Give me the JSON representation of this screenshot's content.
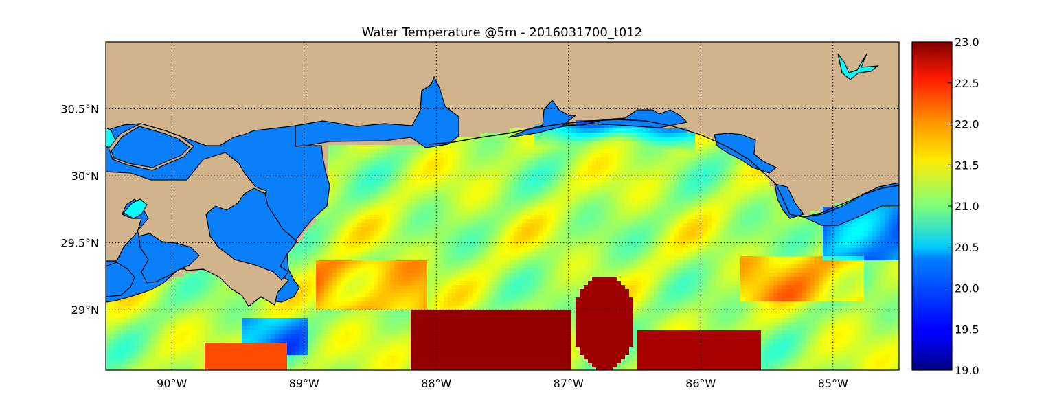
{
  "map": {
    "title": "Water Temperature @5m - 2016031700_t012",
    "lon_extent": [
      -90.5,
      -84.5
    ],
    "lat_extent": [
      28.55,
      31.0
    ],
    "lon_ticks": [
      {
        "value": -90,
        "label": "90°W"
      },
      {
        "value": -89,
        "label": "89°W"
      },
      {
        "value": -88,
        "label": "88°W"
      },
      {
        "value": -87,
        "label": "87°W"
      },
      {
        "value": -86,
        "label": "86°W"
      },
      {
        "value": -85,
        "label": "85°W"
      }
    ],
    "lat_ticks": [
      {
        "value": 30.5,
        "label": "30.5°N"
      },
      {
        "value": 30.0,
        "label": "30°N"
      },
      {
        "value": 29.5,
        "label": "29.5°N"
      },
      {
        "value": 29.0,
        "label": "29°N"
      }
    ],
    "gridlines": "dotted",
    "land_color": "#d2b48c",
    "nodata_water_color": "#0a7ffb",
    "lake_color": "#00ffff",
    "colormap": "jet"
  },
  "colorbar": {
    "min": 19.0,
    "max": 23.0,
    "ticks": [
      "19.0",
      "19.5",
      "20.0",
      "20.5",
      "21.0",
      "21.5",
      "22.0",
      "22.5",
      "23.0"
    ]
  }
}
